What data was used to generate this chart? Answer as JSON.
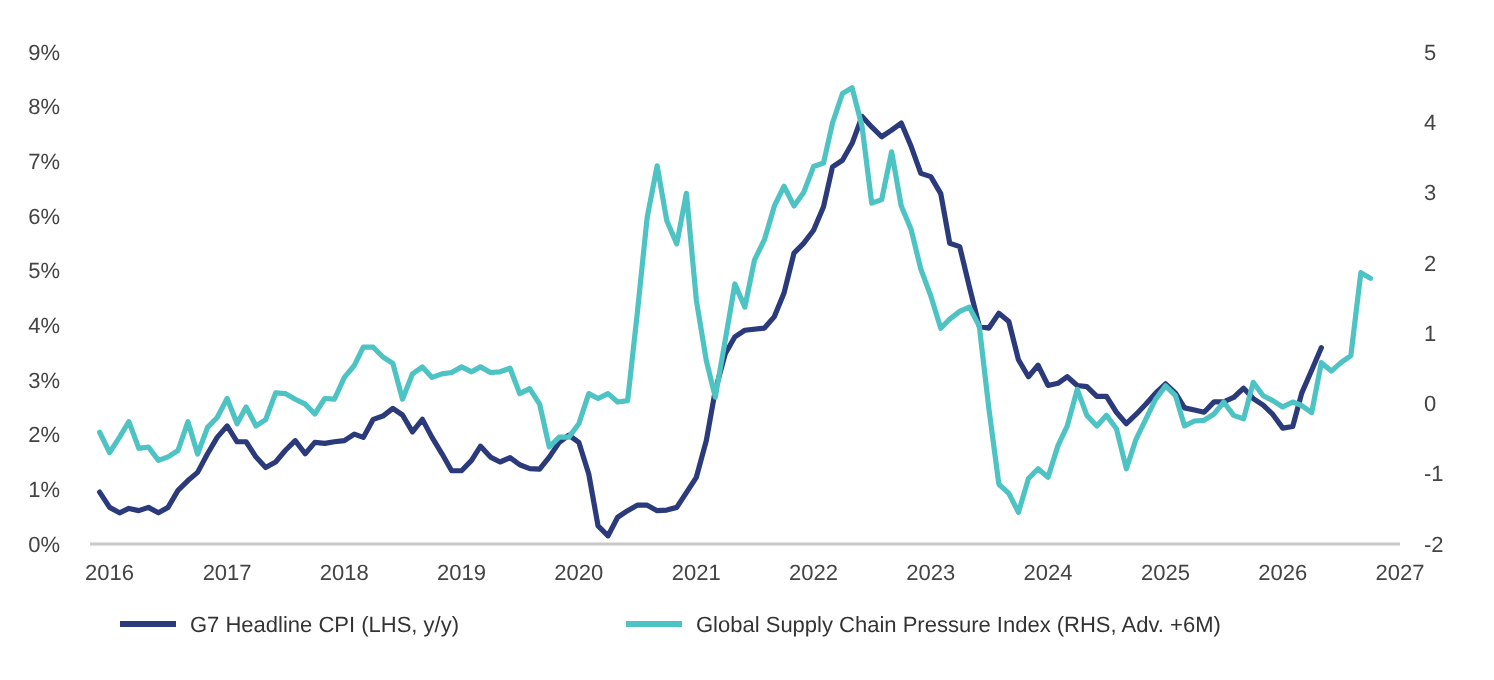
{
  "chart_data": {
    "type": "line",
    "legend": "bottom",
    "grid": false,
    "line_style": "solid",
    "marker": "none",
    "xlim": [
      "2015-11",
      "2027-01"
    ],
    "xticks": [
      "2016",
      "2017",
      "2018",
      "2019",
      "2020",
      "2021",
      "2022",
      "2023",
      "2024",
      "2025",
      "2026",
      "2027"
    ],
    "ylim": [
      0,
      9
    ],
    "yticks": [
      {
        "value": 0,
        "label": "0%"
      },
      {
        "value": 1,
        "label": "1%"
      },
      {
        "value": 2,
        "label": "2%"
      },
      {
        "value": 3,
        "label": "3%"
      },
      {
        "value": 4,
        "label": "4%"
      },
      {
        "value": 5,
        "label": "5%"
      },
      {
        "value": 6,
        "label": "6%"
      },
      {
        "value": 7,
        "label": "7%"
      },
      {
        "value": 8,
        "label": "8%"
      },
      {
        "value": 9,
        "label": "9%"
      }
    ],
    "y2lim": [
      -2,
      5
    ],
    "y2ticks": [
      -2,
      -1,
      0,
      1,
      2,
      3,
      4,
      5
    ],
    "series": [
      {
        "name": "G7 Headline CPI (LHS, y/y)",
        "color": "#2b3a7a",
        "x": [
          "2015-12",
          "2016-01",
          "2016-02",
          "2016-03",
          "2016-04",
          "2016-05",
          "2016-06",
          "2016-07",
          "2016-08",
          "2016-09",
          "2016-10",
          "2016-11",
          "2016-12",
          "2017-01",
          "2017-02",
          "2017-03",
          "2017-04",
          "2017-05",
          "2017-06",
          "2017-07",
          "2017-08",
          "2017-09",
          "2017-10",
          "2017-11",
          "2017-12",
          "2018-01",
          "2018-02",
          "2018-03",
          "2018-04",
          "2018-05",
          "2018-06",
          "2018-07",
          "2018-08",
          "2018-09",
          "2018-10",
          "2018-11",
          "2018-12",
          "2019-01",
          "2019-02",
          "2019-03",
          "2019-04",
          "2019-05",
          "2019-06",
          "2019-07",
          "2019-08",
          "2019-09",
          "2019-10",
          "2019-11",
          "2019-12",
          "2020-01",
          "2020-02",
          "2020-03",
          "2020-04",
          "2020-05",
          "2020-06",
          "2020-07",
          "2020-08",
          "2020-09",
          "2020-10",
          "2020-11",
          "2020-12",
          "2021-01",
          "2021-02",
          "2021-03",
          "2021-04",
          "2021-05",
          "2021-06",
          "2021-08",
          "2021-09",
          "2021-10",
          "2021-11",
          "2021-12",
          "2022-01",
          "2022-02",
          "2022-03",
          "2022-04",
          "2022-05",
          "2022-06",
          "2022-07",
          "2022-08",
          "2022-09",
          "2022-10",
          "2022-11",
          "2022-12",
          "2023-01",
          "2023-02",
          "2023-03",
          "2023-04",
          "2023-05",
          "2023-06",
          "2023-07",
          "2023-08",
          "2023-09",
          "2023-10",
          "2023-11",
          "2023-12",
          "2024-01",
          "2024-02",
          "2024-03",
          "2024-04",
          "2024-05",
          "2024-06",
          "2024-07",
          "2024-08",
          "2024-09",
          "2024-10",
          "2024-11",
          "2024-12",
          "2025-01",
          "2025-02",
          "2025-03",
          "2025-04",
          "2025-05",
          "2025-06",
          "2025-07",
          "2025-08",
          "2025-09",
          "2025-10",
          "2025-11",
          "2025-12",
          "2026-01",
          "2026-02",
          "2026-03",
          "2026-04",
          "2026-05"
        ],
        "values": [
          0.95,
          0.67,
          0.57,
          0.65,
          0.61,
          0.67,
          0.57,
          0.67,
          0.98,
          1.16,
          1.31,
          1.65,
          1.95,
          2.16,
          1.87,
          1.87,
          1.59,
          1.4,
          1.5,
          1.71,
          1.89,
          1.65,
          1.86,
          1.84,
          1.87,
          1.89,
          2.01,
          1.95,
          2.28,
          2.34,
          2.48,
          2.36,
          2.05,
          2.28,
          1.95,
          1.65,
          1.34,
          1.34,
          1.53,
          1.79,
          1.59,
          1.5,
          1.58,
          1.45,
          1.38,
          1.37,
          1.59,
          1.86,
          1.99,
          1.86,
          1.28,
          0.33,
          0.15,
          0.49,
          0.61,
          0.71,
          0.71,
          0.61,
          0.62,
          0.67,
          0.94,
          1.22,
          1.89,
          2.81,
          3.48,
          3.79,
          3.91,
          3.95,
          4.16,
          4.59,
          5.32,
          5.5,
          5.74,
          6.17,
          6.9,
          7.02,
          7.33,
          7.82,
          7.63,
          7.45,
          7.57,
          7.7,
          7.27,
          6.78,
          6.72,
          6.41,
          5.5,
          5.44,
          4.71,
          3.98,
          3.95,
          4.22,
          4.07,
          3.37,
          3.06,
          3.27,
          2.9,
          2.94,
          3.06,
          2.9,
          2.88,
          2.7,
          2.7,
          2.41,
          2.2,
          2.37,
          2.56,
          2.76,
          2.93,
          2.76,
          2.49,
          2.45,
          2.41,
          2.6,
          2.6,
          2.68,
          2.85,
          2.66,
          2.54,
          2.37,
          2.12,
          2.15,
          2.76,
          3.18,
          3.59
        ]
      },
      {
        "name": "Global Supply Chain Pressure Index (RHS, Adv. +6M)",
        "color": "#4ec3c4",
        "axis": "y2",
        "x": [
          "2015-12",
          "2016-01",
          "2016-02",
          "2016-03",
          "2016-04",
          "2016-05",
          "2016-06",
          "2016-07",
          "2016-08",
          "2016-09",
          "2016-10",
          "2016-11",
          "2016-12",
          "2017-01",
          "2017-02",
          "2017-03",
          "2017-04",
          "2017-05",
          "2017-06",
          "2017-07",
          "2017-08",
          "2017-09",
          "2017-10",
          "2017-11",
          "2017-12",
          "2018-01",
          "2018-02",
          "2018-03",
          "2018-04",
          "2018-05",
          "2018-06",
          "2018-07",
          "2018-08",
          "2018-09",
          "2018-10",
          "2018-11",
          "2018-12",
          "2019-01",
          "2019-02",
          "2019-03",
          "2019-04",
          "2019-05",
          "2019-06",
          "2019-07",
          "2019-08",
          "2019-09",
          "2019-10",
          "2019-11",
          "2019-12",
          "2020-01",
          "2020-02",
          "2020-03",
          "2020-04",
          "2020-05",
          "2020-06",
          "2020-07",
          "2020-08",
          "2020-09",
          "2020-10",
          "2020-11",
          "2020-12",
          "2021-01",
          "2021-02",
          "2021-03",
          "2021-04",
          "2021-05",
          "2021-06",
          "2021-07",
          "2021-08",
          "2021-09",
          "2021-10",
          "2021-11",
          "2021-12",
          "2022-01",
          "2022-02",
          "2022-03",
          "2022-04",
          "2022-05",
          "2022-06",
          "2022-07",
          "2022-08",
          "2022-09",
          "2022-10",
          "2022-11",
          "2022-12",
          "2023-01",
          "2023-02",
          "2023-03",
          "2023-04",
          "2023-05",
          "2023-06",
          "2023-07",
          "2023-08",
          "2023-09",
          "2023-10",
          "2023-11",
          "2023-12",
          "2024-01",
          "2024-02",
          "2024-03",
          "2024-04",
          "2024-05",
          "2024-06",
          "2024-07",
          "2024-08",
          "2024-09",
          "2024-10",
          "2024-11",
          "2024-12",
          "2025-01",
          "2025-02",
          "2025-03",
          "2025-04",
          "2025-05",
          "2025-06",
          "2025-07",
          "2025-08",
          "2025-09",
          "2025-10",
          "2025-11",
          "2025-12",
          "2026-01",
          "2026-02",
          "2026-03",
          "2026-04",
          "2026-05",
          "2026-06",
          "2026-07",
          "2026-08",
          "2026-09",
          "2026-10"
        ],
        "values": [
          -0.41,
          -0.7,
          -0.48,
          -0.26,
          -0.64,
          -0.62,
          -0.81,
          -0.76,
          -0.67,
          -0.26,
          -0.72,
          -0.34,
          -0.2,
          0.07,
          -0.29,
          -0.05,
          -0.32,
          -0.23,
          0.15,
          0.14,
          0.06,
          -0.01,
          -0.15,
          0.07,
          0.06,
          0.37,
          0.54,
          0.8,
          0.8,
          0.66,
          0.57,
          0.06,
          0.42,
          0.52,
          0.37,
          0.42,
          0.44,
          0.52,
          0.45,
          0.52,
          0.44,
          0.45,
          0.5,
          0.14,
          0.21,
          -0.01,
          -0.62,
          -0.48,
          -0.48,
          -0.29,
          0.14,
          0.07,
          0.14,
          0.02,
          0.04,
          1.28,
          2.65,
          3.38,
          2.6,
          2.27,
          2.99,
          1.47,
          0.61,
          0.09,
          0.9,
          1.7,
          1.37,
          2.04,
          2.33,
          2.81,
          3.09,
          2.81,
          3.0,
          3.37,
          3.42,
          3.99,
          4.41,
          4.49,
          3.94,
          2.85,
          2.9,
          3.58,
          2.81,
          2.47,
          1.91,
          1.53,
          1.07,
          1.2,
          1.31,
          1.37,
          1.1,
          -0.08,
          -1.15,
          -1.28,
          -1.55,
          -1.07,
          -0.93,
          -1.05,
          -0.6,
          -0.32,
          0.2,
          -0.17,
          -0.32,
          -0.17,
          -0.36,
          -0.93,
          -0.51,
          -0.22,
          0.06,
          0.25,
          0.11,
          -0.32,
          -0.25,
          -0.24,
          -0.15,
          0.02,
          -0.17,
          -0.22,
          0.3,
          0.11,
          0.04,
          -0.05,
          0.02,
          -0.03,
          -0.13,
          0.58,
          0.46,
          0.58,
          0.68,
          1.86,
          1.78
        ]
      }
    ]
  }
}
